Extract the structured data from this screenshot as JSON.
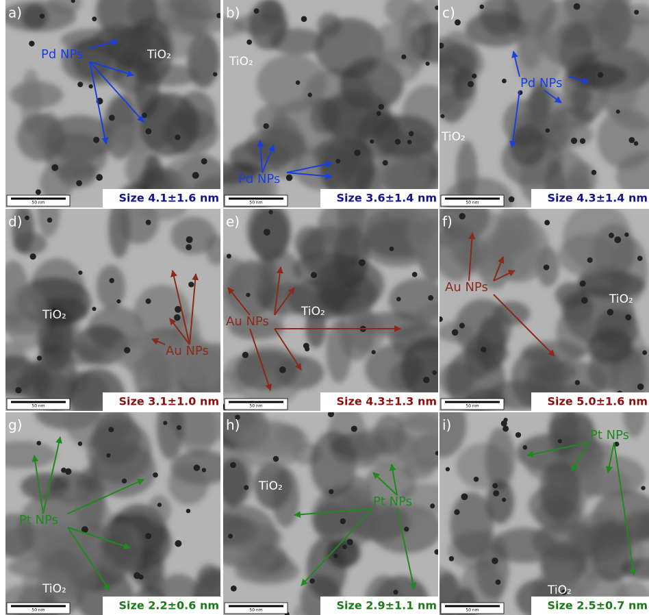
{
  "panels": [
    {
      "label": "a)",
      "particle_label": "Pd NPs",
      "support_label": "TiO₂",
      "size": "Size 4.1±1.6 nm",
      "scale_bar": "50 nm"
    },
    {
      "label": "b)",
      "particle_label": "Pd NPs",
      "support_label": "TiO₂",
      "size": "Size 3.6±1.4 nm",
      "scale_bar": "50 nm"
    },
    {
      "label": "c)",
      "particle_label": "Pd NPs",
      "support_label": "TiO₂",
      "size": "Size 4.3±1.4 nm",
      "scale_bar": "50 nm"
    },
    {
      "label": "d)",
      "particle_label": "Au NPs",
      "support_label": "TiO₂",
      "size": "Size 3.1±1.0 nm",
      "scale_bar": "50 nm"
    },
    {
      "label": "e)",
      "particle_label": "Au NPs",
      "support_label": "TiO₂",
      "size": "Size 4.3±1.3 nm",
      "scale_bar": "50 nm"
    },
    {
      "label": "f)",
      "particle_label": "Au NPs",
      "support_label": "TiO₂",
      "size": "Size 5.0±1.6 nm",
      "scale_bar": "50 nm"
    },
    {
      "label": "g)",
      "particle_label": "Pt NPs",
      "support_label": "TiO₂",
      "size": "Size 2.2±0.6 nm",
      "scale_bar": "50 nm"
    },
    {
      "label": "h)",
      "particle_label": "Pt NPs",
      "support_label": "TiO₂",
      "size": "Size 2.9±1.1 nm",
      "scale_bar": "50 nm"
    },
    {
      "label": "i)",
      "particle_label": "Pt NPs",
      "support_label": "TiO₂",
      "size": "Size 2.5±0.7 nm",
      "scale_bar": "50 nm"
    }
  ]
}
